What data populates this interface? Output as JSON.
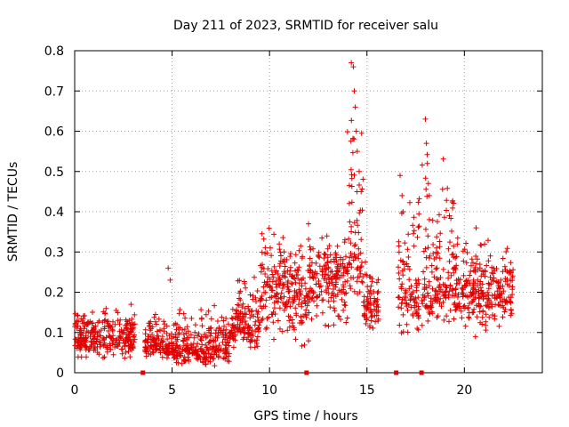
{
  "chart_data": {
    "type": "scatter",
    "title": "Day 211 of 2023, SRMTID for receiver salu",
    "xlabel": "GPS time / hours",
    "ylabel": "SRMTID / TECUs",
    "xlim": [
      0,
      24
    ],
    "ylim": [
      0,
      0.8
    ],
    "x_ticks": [
      0,
      5,
      10,
      15,
      20
    ],
    "y_ticks": [
      0,
      0.1,
      0.2,
      0.3,
      0.4,
      0.5,
      0.6,
      0.7,
      0.8
    ],
    "x_tick_labels": [
      "0",
      "5",
      "10",
      "15",
      "20"
    ],
    "y_tick_labels": [
      "0",
      "0.1",
      "0.2",
      "0.3",
      "0.4",
      "0.5",
      "0.6",
      "0.7",
      "0.8"
    ],
    "grid": true,
    "marker": "+",
    "color": "#e00000",
    "series": [
      {
        "name": "SRMTID",
        "description_of_trend": "approx. envelope per time window (data units)",
        "segments": [
          {
            "x_range": [
              0.0,
              3.1
            ],
            "y_median": 0.09,
            "y_range": [
              0.02,
              0.18
            ]
          },
          {
            "x_range": [
              3.6,
              5.0
            ],
            "y_median": 0.07,
            "y_range": [
              0.02,
              0.16
            ]
          },
          {
            "x_range": [
              5.0,
              8.0
            ],
            "y_median": 0.06,
            "y_range": [
              0.01,
              0.18
            ]
          },
          {
            "x_range": [
              8.0,
              9.5
            ],
            "y_median": 0.12,
            "y_range": [
              0.05,
              0.28
            ]
          },
          {
            "x_range": [
              9.5,
              12.0
            ],
            "y_median": 0.2,
            "y_range": [
              0.04,
              0.38
            ]
          },
          {
            "x_range": [
              12.0,
              14.0
            ],
            "y_median": 0.24,
            "y_range": [
              0.08,
              0.36
            ]
          },
          {
            "x_range": [
              14.0,
              14.8
            ],
            "y_median": 0.3,
            "y_range": [
              0.15,
              0.77
            ]
          },
          {
            "x_range": [
              14.8,
              15.6
            ],
            "y_median": 0.17,
            "y_range": [
              0.08,
              0.3
            ]
          },
          {
            "x_range": [
              16.6,
              17.7
            ],
            "y_median": 0.2,
            "y_range": [
              0.07,
              0.49
            ]
          },
          {
            "x_range": [
              17.8,
              19.5
            ],
            "y_median": 0.22,
            "y_range": [
              0.1,
              0.63
            ]
          },
          {
            "x_range": [
              19.5,
              22.5
            ],
            "y_median": 0.2,
            "y_range": [
              0.08,
              0.36
            ]
          }
        ],
        "spikes": [
          {
            "x": 4.8,
            "y": 0.26
          },
          {
            "x": 4.9,
            "y": 0.23
          },
          {
            "x": 14.2,
            "y": 0.77
          },
          {
            "x": 14.3,
            "y": 0.76
          },
          {
            "x": 14.35,
            "y": 0.7
          },
          {
            "x": 14.4,
            "y": 0.66
          },
          {
            "x": 14.45,
            "y": 0.6
          },
          {
            "x": 14.5,
            "y": 0.55
          },
          {
            "x": 14.6,
            "y": 0.5
          },
          {
            "x": 14.7,
            "y": 0.45
          },
          {
            "x": 16.7,
            "y": 0.49
          },
          {
            "x": 16.8,
            "y": 0.44
          },
          {
            "x": 16.85,
            "y": 0.4
          },
          {
            "x": 18.0,
            "y": 0.63
          },
          {
            "x": 18.05,
            "y": 0.57
          },
          {
            "x": 18.1,
            "y": 0.52
          },
          {
            "x": 18.15,
            "y": 0.47
          },
          {
            "x": 18.2,
            "y": 0.44
          },
          {
            "x": 10.5,
            "y": 0.32
          },
          {
            "x": 12.0,
            "y": 0.37
          },
          {
            "x": 20.6,
            "y": 0.36
          }
        ]
      }
    ],
    "zero_markers_x": [
      3.5,
      11.9,
      16.5,
      17.8
    ]
  }
}
